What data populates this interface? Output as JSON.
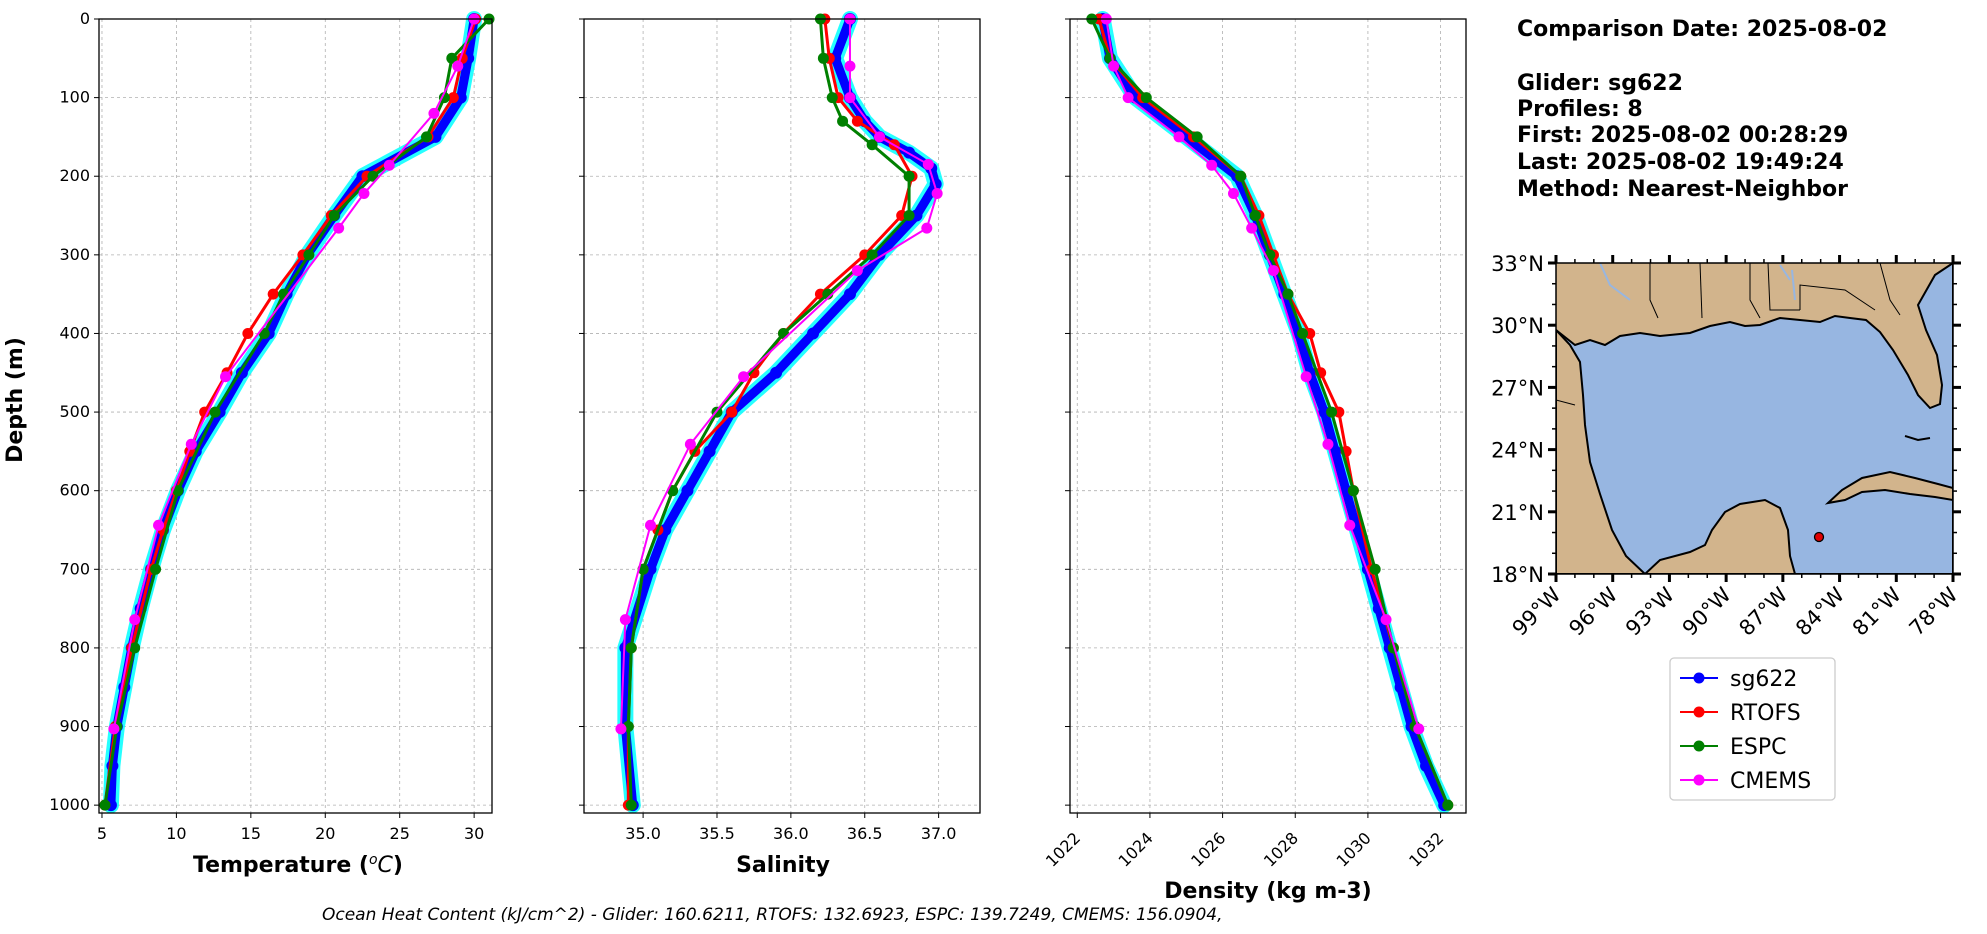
{
  "info": {
    "comparison_date": "Comparison Date: 2025-08-02",
    "glider": "Glider: sg622",
    "profiles": "Profiles: 8",
    "first": "First: 2025-08-02 00:28:29",
    "last": "Last: 2025-08-02 19:49:24",
    "method": "Method: Nearest-Neighbor"
  },
  "footer": "Ocean Heat Content (kJ/cm^2) - Glider: 160.6211,  RTOFS: 132.6923,  ESPC: 139.7249,  CMEMS: 156.0904,",
  "colors": {
    "sg622": "#0000ff",
    "sg622_spread": "#00ffff",
    "RTOFS": "#ff0000",
    "ESPC": "#008000",
    "CMEMS": "#ff00ff",
    "land": "#d2b48c",
    "ocean": "#97b6e1"
  },
  "chart_data": [
    {
      "type": "line",
      "panel": "temperature",
      "xlabel": "Temperature (ᵒC)",
      "ylabel": "Depth (m)",
      "xlim": [
        4.8,
        31.2
      ],
      "ylim": [
        1010,
        0
      ],
      "xticks": [
        5,
        10,
        15,
        20,
        25,
        30
      ],
      "yticks": [
        0,
        100,
        200,
        300,
        400,
        500,
        600,
        700,
        800,
        900,
        1000
      ],
      "grid": true,
      "series": [
        {
          "name": "sg622",
          "depth": [
            0,
            50,
            100,
            150,
            200,
            250,
            300,
            350,
            400,
            450,
            500,
            550,
            600,
            650,
            700,
            750,
            800,
            850,
            900,
            950,
            1000
          ],
          "values": [
            30.0,
            29.6,
            29.1,
            27.4,
            22.5,
            20.6,
            18.8,
            17.4,
            16.2,
            14.4,
            12.9,
            11.3,
            10.1,
            9.1,
            8.3,
            7.6,
            7.0,
            6.5,
            6.0,
            5.7,
            5.6
          ]
        },
        {
          "name": "RTOFS",
          "depth": [
            0,
            50,
            100,
            150,
            200,
            250,
            300,
            350,
            400,
            450,
            500,
            550,
            600,
            650,
            700,
            800,
            900,
            1000
          ],
          "values": [
            30.1,
            29.2,
            28.6,
            26.9,
            22.8,
            20.4,
            18.5,
            16.5,
            14.8,
            13.4,
            11.9,
            10.9,
            10.0,
            9.1,
            8.3,
            7.0,
            5.9,
            5.2
          ]
        },
        {
          "name": "ESPC",
          "depth": [
            0,
            50,
            100,
            150,
            200,
            250,
            300,
            350,
            400,
            500,
            600,
            700,
            800,
            900,
            1000
          ],
          "values": [
            31.0,
            28.5,
            28.0,
            26.8,
            23.2,
            20.6,
            18.9,
            17.2,
            15.9,
            12.6,
            10.1,
            8.6,
            7.2,
            6.0,
            5.2
          ]
        },
        {
          "name": "CMEMS",
          "depth": [
            0,
            60,
            120,
            186,
            222,
            266,
            455,
            541,
            644,
            764,
            903
          ],
          "values": [
            30.0,
            28.9,
            27.3,
            24.3,
            22.6,
            20.9,
            13.3,
            11.0,
            8.8,
            7.2,
            5.8
          ]
        }
      ]
    },
    {
      "type": "line",
      "panel": "salinity",
      "xlabel": "Salinity",
      "ylabel": "",
      "xlim": [
        34.6,
        37.28
      ],
      "ylim": [
        1010,
        0
      ],
      "xticks": [
        35.0,
        35.5,
        36.0,
        36.5,
        37.0
      ],
      "yticks": [
        0,
        100,
        200,
        300,
        400,
        500,
        600,
        700,
        800,
        900,
        1000
      ],
      "grid": true,
      "series": [
        {
          "name": "sg622",
          "depth": [
            0,
            50,
            100,
            130,
            150,
            170,
            190,
            210,
            250,
            300,
            350,
            400,
            450,
            500,
            550,
            600,
            650,
            700,
            800,
            900,
            1000
          ],
          "values": [
            36.4,
            36.3,
            36.4,
            36.5,
            36.6,
            36.8,
            36.95,
            36.98,
            36.85,
            36.6,
            36.4,
            36.15,
            35.9,
            35.6,
            35.45,
            35.3,
            35.15,
            35.05,
            34.88,
            34.88,
            34.93
          ]
        },
        {
          "name": "RTOFS",
          "depth": [
            0,
            50,
            100,
            130,
            160,
            200,
            250,
            300,
            350,
            400,
            450,
            500,
            550,
            600,
            650,
            700,
            800,
            900,
            1000
          ],
          "values": [
            36.23,
            36.26,
            36.32,
            36.45,
            36.7,
            36.82,
            36.75,
            36.5,
            36.2,
            35.95,
            35.75,
            35.6,
            35.35,
            35.2,
            35.1,
            35.0,
            34.92,
            34.9,
            34.9
          ]
        },
        {
          "name": "ESPC",
          "depth": [
            0,
            50,
            100,
            130,
            160,
            200,
            250,
            300,
            350,
            400,
            500,
            600,
            700,
            800,
            900,
            1000
          ],
          "values": [
            36.2,
            36.22,
            36.28,
            36.35,
            36.55,
            36.8,
            36.8,
            36.55,
            36.25,
            35.95,
            35.5,
            35.2,
            35.0,
            34.92,
            34.9,
            34.92
          ]
        },
        {
          "name": "CMEMS",
          "depth": [
            0,
            60,
            100,
            150,
            185,
            222,
            266,
            320,
            455,
            541,
            644,
            764,
            903
          ],
          "values": [
            36.4,
            36.4,
            36.4,
            36.6,
            36.93,
            36.99,
            36.92,
            36.45,
            35.68,
            35.32,
            35.05,
            34.88,
            34.85
          ]
        }
      ]
    },
    {
      "type": "line",
      "panel": "density",
      "xlabel": "Density (kg m-3)",
      "ylabel": "",
      "xlim": [
        1021.8,
        1032.7
      ],
      "ylim": [
        1010,
        0
      ],
      "xticks": [
        1022,
        1024,
        1026,
        1028,
        1030,
        1032
      ],
      "yticks": [
        0,
        100,
        200,
        300,
        400,
        500,
        600,
        700,
        800,
        900,
        1000
      ],
      "grid": true,
      "series": [
        {
          "name": "sg622",
          "depth": [
            0,
            50,
            100,
            150,
            200,
            250,
            300,
            350,
            400,
            450,
            500,
            550,
            600,
            650,
            700,
            750,
            800,
            850,
            900,
            950,
            1000
          ],
          "values": [
            1022.7,
            1022.9,
            1023.6,
            1025.0,
            1026.4,
            1026.9,
            1027.3,
            1027.7,
            1028.1,
            1028.4,
            1028.8,
            1029.1,
            1029.4,
            1029.7,
            1030.0,
            1030.3,
            1030.6,
            1030.9,
            1031.2,
            1031.6,
            1032.1
          ]
        },
        {
          "name": "RTOFS",
          "depth": [
            0,
            50,
            100,
            150,
            200,
            250,
            300,
            350,
            400,
            450,
            500,
            550,
            600,
            700,
            800,
            900,
            1000
          ],
          "values": [
            1022.6,
            1022.9,
            1023.8,
            1025.2,
            1026.5,
            1027.0,
            1027.4,
            1027.8,
            1028.4,
            1028.7,
            1029.2,
            1029.4,
            1029.6,
            1030.1,
            1030.7,
            1031.3,
            1032.2
          ]
        },
        {
          "name": "ESPC",
          "depth": [
            0,
            50,
            100,
            150,
            200,
            250,
            300,
            350,
            400,
            500,
            600,
            700,
            800,
            900,
            1000
          ],
          "values": [
            1022.4,
            1022.9,
            1023.9,
            1025.3,
            1026.5,
            1026.9,
            1027.3,
            1027.8,
            1028.2,
            1029.0,
            1029.6,
            1030.2,
            1030.7,
            1031.3,
            1032.2
          ]
        },
        {
          "name": "CMEMS",
          "depth": [
            0,
            60,
            100,
            150,
            186,
            222,
            266,
            320,
            455,
            541,
            644,
            764,
            903
          ],
          "values": [
            1022.8,
            1023.0,
            1023.4,
            1024.8,
            1025.7,
            1026.3,
            1026.8,
            1027.4,
            1028.3,
            1028.9,
            1029.5,
            1030.5,
            1031.4
          ]
        }
      ]
    }
  ],
  "map": {
    "lat_ticks": [
      "33°N",
      "30°N",
      "27°N",
      "24°N",
      "21°N",
      "18°N"
    ],
    "lon_ticks": [
      "99°W",
      "96°W",
      "93°W",
      "90°W",
      "87°W",
      "84°W",
      "81°W",
      "78°W"
    ],
    "glider_position": {
      "lon": -85.4,
      "lat": 19.8
    }
  },
  "legend": [
    "sg622",
    "RTOFS",
    "ESPC",
    "CMEMS"
  ]
}
